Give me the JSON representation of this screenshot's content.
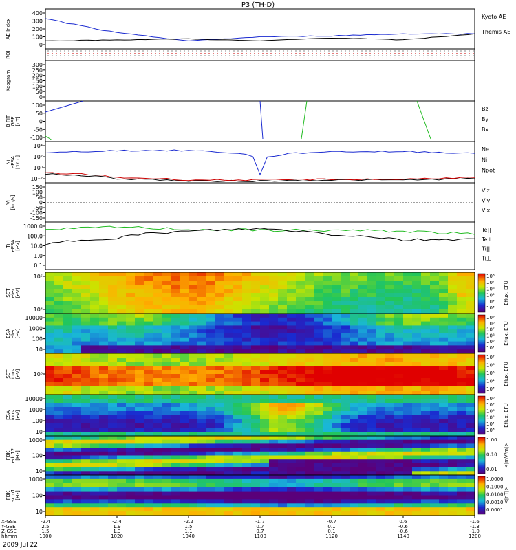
{
  "title": "P3 (TH-D)",
  "date_label": "2009 Jul 22",
  "panels": [
    {
      "id": "ae",
      "ylabel": [
        "AE Index"
      ],
      "ticks": [
        "400",
        "300",
        "200",
        "100",
        "0"
      ],
      "legend": [
        {
          "text": "Kyoto AE",
          "color": "#1a2ad0"
        },
        {
          "text": "Themis AE",
          "color": "#000000"
        }
      ]
    },
    {
      "id": "roi",
      "ylabel": [
        "ROI"
      ],
      "ticks": [],
      "legend": []
    },
    {
      "id": "keogram",
      "ylabel": [
        "Keogram"
      ],
      "ticks": [
        "300",
        "250",
        "200",
        "150",
        "100",
        "50",
        "0"
      ],
      "legend": []
    },
    {
      "id": "bfit",
      "ylabel": [
        "B FIT",
        "GSE",
        "[nT]"
      ],
      "ticks": [
        "100",
        "50",
        "0",
        "-50",
        "-100"
      ],
      "legend": [
        {
          "text": "Bz",
          "color": "#cc0000"
        },
        {
          "text": "By",
          "color": "#22bb22"
        },
        {
          "text": "Bx",
          "color": "#1a2ad0"
        }
      ]
    },
    {
      "id": "ni",
      "ylabel": [
        "Ni",
        "eESA",
        "[1/cc]"
      ],
      "ticks": [
        "10⁴",
        "10²",
        "10⁰",
        "10⁻²"
      ],
      "legend": [
        {
          "text": "Ne",
          "color": "#cc0000"
        },
        {
          "text": "Ni",
          "color": "#000000"
        },
        {
          "text": "Npot",
          "color": "#1a2ad0"
        }
      ]
    },
    {
      "id": "vi",
      "ylabel": [
        "Vi",
        "[km/s]"
      ],
      "ticks": [
        "150",
        "100",
        "50",
        "0",
        "-50",
        "-100",
        "-150"
      ],
      "legend": [
        {
          "text": "Viz",
          "color": "#cc0000"
        },
        {
          "text": "Viy",
          "color": "#22bb22"
        },
        {
          "text": "Vix",
          "color": "#1a2ad0"
        }
      ]
    },
    {
      "id": "ti",
      "ylabel": [
        "Ti",
        "eESA",
        "[eV]"
      ],
      "ticks": [
        "1000.0",
        "100.0",
        "10.0",
        "1.0",
        "0.1"
      ],
      "legend": [
        {
          "text": "Te||",
          "color": "#000000"
        },
        {
          "text": "Te⊥",
          "color": "#cc0000"
        },
        {
          "text": "Ti||",
          "color": "#22bb22"
        },
        {
          "text": "Ti⊥",
          "color": "#1a2ad0"
        }
      ]
    },
    {
      "id": "sst_e",
      "ylabel": [
        "SST",
        "elec",
        "[eV]"
      ],
      "ticks": [
        "10⁵",
        "10⁴"
      ],
      "cbar": {
        "ticks": [
          "10⁸",
          "10⁷",
          "10⁶",
          "10⁵",
          "10⁴",
          "10³"
        ],
        "label": "Eflux, EFU"
      }
    },
    {
      "id": "esa_e",
      "ylabel": [
        "ESA",
        "elec",
        "[eV]"
      ],
      "ticks": [
        "10000",
        "1000",
        "100",
        "10"
      ],
      "cbar": {
        "ticks": [
          "10⁹",
          "10⁸",
          "10⁷",
          "10⁶",
          "10⁵",
          "10⁴"
        ],
        "label": "Eflux, EFU"
      }
    },
    {
      "id": "sst_i",
      "ylabel": [
        "SST",
        "ions",
        "[eV]"
      ],
      "ticks": [
        "10⁵"
      ],
      "cbar": {
        "ticks": [
          "10⁷",
          "10⁶",
          "10⁵",
          "10⁴",
          "10³"
        ],
        "label": "Eflux, EFU"
      }
    },
    {
      "id": "esa_i",
      "ylabel": [
        "ESA",
        "ions",
        "[eV]"
      ],
      "ticks": [
        "10000",
        "1000",
        "100",
        "10"
      ],
      "cbar": {
        "ticks": [
          "10⁸",
          "10⁷",
          "10⁶",
          "10⁵",
          "10⁴",
          "10³"
        ],
        "label": "Eflux, EFU"
      }
    },
    {
      "id": "fbk_e",
      "ylabel": [
        "FBK",
        "edc12",
        "[Hz]"
      ],
      "ticks": [
        "1000",
        "100",
        "10"
      ],
      "cbar": {
        "ticks": [
          "1.00",
          "0.10",
          "0.01"
        ],
        "label": "<|mV/m|>"
      }
    },
    {
      "id": "fbk_b",
      "ylabel": [
        "FBK",
        "scm1",
        "[Hz]"
      ],
      "ticks": [
        "1000",
        "100",
        "10"
      ],
      "cbar": {
        "ticks": [
          "1.0000",
          "0.1000",
          "0.0100",
          "0.0010",
          "0.0001"
        ],
        "label": "<|nT|>"
      }
    }
  ],
  "xaxis": {
    "row_labels": [
      "X-GSE",
      "Y-GSE",
      "Z-GSE",
      "hhmm"
    ],
    "columns": [
      [
        "-2.4",
        "2.5",
        "1.5",
        "1000"
      ],
      [
        "-2.4",
        "1.9",
        "1.3",
        "1020"
      ],
      [
        "-2.2",
        "1.5",
        "1.1",
        "1040"
      ],
      [
        "-1.7",
        "0.7",
        "0.7",
        "1100"
      ],
      [
        "-0.7",
        "0.1",
        "0.1",
        "1120"
      ],
      [
        "0.6",
        "-0.6",
        "-0.6",
        "1140"
      ],
      [
        "-1.6",
        "-1.3",
        "-1.0",
        "1200"
      ]
    ]
  },
  "chart_data": [
    {
      "type": "line",
      "panel": "ae",
      "x": [
        "1000",
        "1020",
        "1040",
        "1100",
        "1120",
        "1140",
        "1200"
      ],
      "series": [
        {
          "name": "Kyoto AE",
          "values": [
            300,
            160,
            80,
            120,
            130,
            150,
            150
          ]
        },
        {
          "name": "Themis AE",
          "values": [
            80,
            90,
            100,
            80,
            110,
            90,
            150
          ]
        }
      ],
      "ylim": [
        0,
        400
      ]
    },
    {
      "type": "line",
      "panel": "ni",
      "ylog": true,
      "ylim": [
        0.01,
        100000
      ],
      "series": [
        {
          "name": "Npot",
          "values": [
            1000,
            3000,
            3000,
            0.3,
            2000,
            2000,
            1000
          ]
        },
        {
          "name": "Ni",
          "values": [
            0.3,
            0.05,
            0.02,
            0.02,
            0.03,
            0.03,
            0.05
          ]
        },
        {
          "name": "Ne",
          "values": [
            0.5,
            0.08,
            0.03,
            0.03,
            0.04,
            0.04,
            0.08
          ]
        }
      ]
    },
    {
      "type": "line",
      "panel": "ti",
      "ylog": true,
      "ylim": [
        0.1,
        3000
      ],
      "series": [
        {
          "name": "Ti||",
          "values": [
            500,
            1000,
            600,
            500,
            500,
            400,
            200
          ]
        },
        {
          "name": "Te||",
          "values": [
            20,
            100,
            400,
            700,
            200,
            60,
            80
          ]
        }
      ]
    },
    {
      "type": "heatmap",
      "panel": "sst_e"
    },
    {
      "type": "heatmap",
      "panel": "esa_e"
    },
    {
      "type": "heatmap",
      "panel": "sst_i"
    },
    {
      "type": "heatmap",
      "panel": "esa_i"
    },
    {
      "type": "heatmap",
      "panel": "fbk_e"
    },
    {
      "type": "heatmap",
      "panel": "fbk_b"
    }
  ]
}
